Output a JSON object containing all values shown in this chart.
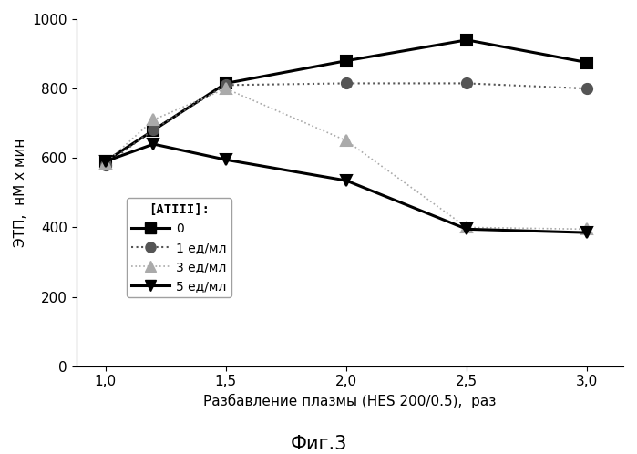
{
  "x": [
    1.0,
    1.2,
    1.5,
    2.0,
    2.5,
    3.0
  ],
  "series": [
    {
      "label": "0",
      "y": [
        590,
        680,
        815,
        880,
        940,
        875
      ],
      "color": "#000000",
      "marker": "s",
      "linestyle": "-",
      "linewidth": 2.2,
      "markersize": 8,
      "markerfacecolor": "#000000",
      "markeredgecolor": "#000000"
    },
    {
      "label": "1 ед/мл",
      "y": [
        580,
        682,
        810,
        815,
        815,
        800
      ],
      "color": "#555555",
      "marker": "o",
      "linestyle": ":",
      "linewidth": 1.5,
      "markersize": 8,
      "markerfacecolor": "#555555",
      "markeredgecolor": "#555555"
    },
    {
      "label": "3 ед/мл",
      "y": [
        585,
        710,
        800,
        650,
        400,
        395
      ],
      "color": "#aaaaaa",
      "marker": "^",
      "linestyle": ":",
      "linewidth": 1.2,
      "markersize": 8,
      "markerfacecolor": "#aaaaaa",
      "markeredgecolor": "#aaaaaa"
    },
    {
      "label": "5 ед/мл",
      "y": [
        590,
        640,
        595,
        535,
        395,
        385
      ],
      "color": "#000000",
      "marker": "v",
      "linestyle": "-",
      "linewidth": 2.2,
      "markersize": 8,
      "markerfacecolor": "#000000",
      "markeredgecolor": "#000000"
    }
  ],
  "xlabel": "Разбавление плазмы (HES 200/0.5),  раз",
  "ylabel": "ЭТП,  нМ х мин",
  "fig3_label": "Фиг.3",
  "legend_title": "[АТIII]:",
  "xlim": [
    0.88,
    3.15
  ],
  "ylim": [
    0,
    1000
  ],
  "xticks": [
    1.0,
    1.5,
    2.0,
    2.5,
    3.0
  ],
  "yticks": [
    0,
    200,
    400,
    600,
    800,
    1000
  ],
  "xtick_labels": [
    "1,0",
    "1,5",
    "2,0",
    "2,5",
    "3,0"
  ],
  "background_color": "#ffffff"
}
